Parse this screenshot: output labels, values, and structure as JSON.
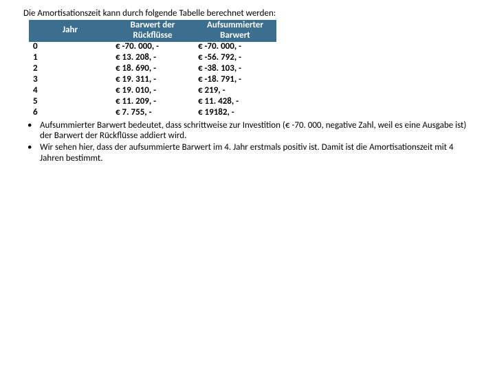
{
  "intro_text": "Die Amortisationszeit kann durch folgende Tabelle berechnet werden:",
  "table": {
    "header_row_bg": "#3b6e8f",
    "header_text_color": "#ffffff",
    "columns": [
      {
        "label_line1": "Jahr",
        "label_line2": ""
      },
      {
        "label_line1": "Barwert der",
        "label_line2": "Rückflüsse"
      },
      {
        "label_line1": "Aufsummierter",
        "label_line2": "Barwert"
      }
    ],
    "rows": [
      {
        "year": "0",
        "barwert": "€ -70. 000, -",
        "sum": "€ -70. 000, -"
      },
      {
        "year": "1",
        "barwert": "€ 13. 208, -",
        "sum": "€ -56. 792, -"
      },
      {
        "year": "2",
        "barwert": "€ 18. 690, -",
        "sum": "€ -38. 103, -"
      },
      {
        "year": "3",
        "barwert": "€ 19. 311, -",
        "sum": "€ -18. 791, -"
      },
      {
        "year": "4",
        "barwert": "€ 19. 010, -",
        "sum": "€ 219, -"
      },
      {
        "year": "5",
        "barwert": "€ 11. 209, -",
        "sum": "€ 11. 428, -"
      },
      {
        "year": "6",
        "barwert": "€ 7. 755, -",
        "sum": "€ 19182, -"
      }
    ]
  },
  "bullets": [
    "Aufsummierter Barwert bedeutet, dass schrittweise zur Investition (€ -70. 000, negative Zahl, weil es eine Ausgabe ist) der Barwert der Rückflüsse addiert wird.",
    "Wir sehen hier, dass der aufsummierte Barwert im 4. Jahr erstmals positiv ist. Damit ist die Amortisationszeit mit 4 Jahren bestimmt."
  ]
}
